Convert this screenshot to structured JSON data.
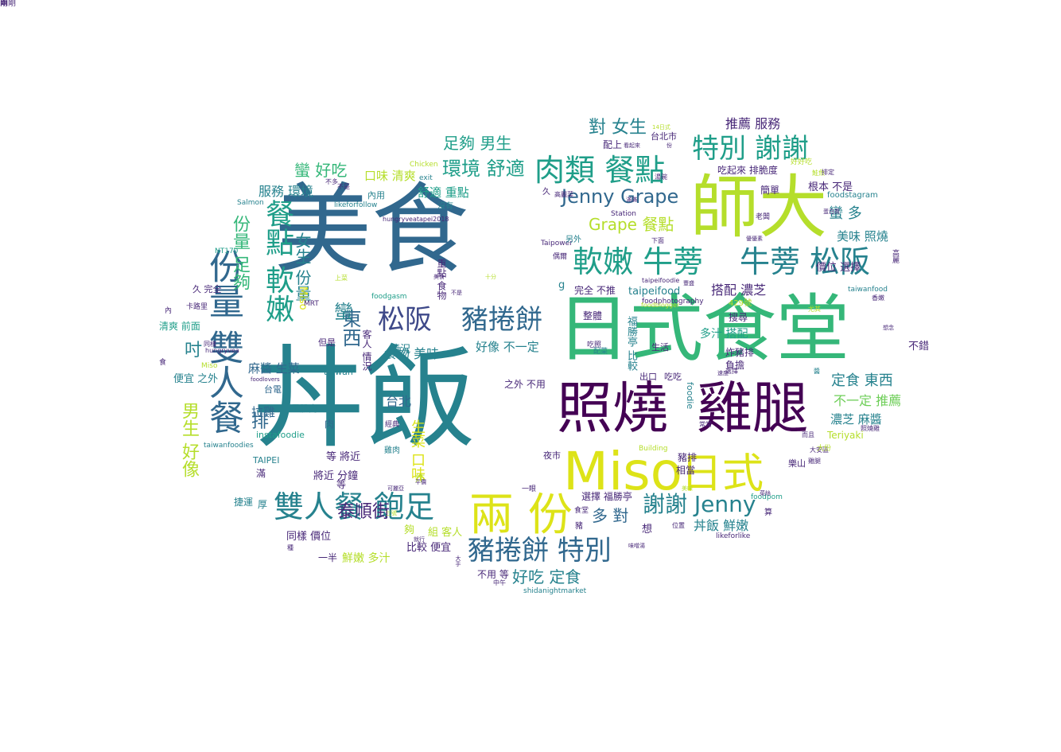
{
  "palette": {
    "dark_purple": "#440154",
    "purple": "#482878",
    "indigo": "#3e4989",
    "blue": "#31688e",
    "teal": "#26828e",
    "green_teal": "#1f9e89",
    "green": "#35b779",
    "lime": "#6ece58",
    "yellow_green": "#b5de2b",
    "yellow": "#dde318"
  },
  "words": [
    {
      "text": "美食",
      "c": "blue"
    },
    {
      "text": "丼飯",
      "c": "teal"
    },
    {
      "text": "日式食堂",
      "c": "green"
    },
    {
      "text": "師大",
      "c": "yellow_green"
    },
    {
      "text": "照燒",
      "c": "dark_purple"
    },
    {
      "text": "雞腿",
      "c": "dark_purple"
    },
    {
      "text": "Miso",
      "c": "yellow"
    },
    {
      "text": "日式",
      "c": "yellow"
    },
    {
      "text": "兩 份",
      "c": "yellow"
    },
    {
      "text": "雙人餐 飽足",
      "c": "teal"
    },
    {
      "text": "份量 雙人餐",
      "c": "blue"
    },
    {
      "text": "餐點 軟嫩",
      "c": "green_teal"
    },
    {
      "text": "軟嫩 牛蒡",
      "c": "green_teal"
    },
    {
      "text": "牛蒡 松阪",
      "c": "teal"
    },
    {
      "text": "肉類 餐點",
      "c": "green_teal"
    },
    {
      "text": "特別 謝謝",
      "c": "green_teal"
    },
    {
      "text": "松阪",
      "c": "indigo"
    },
    {
      "text": "豬捲餅",
      "c": "blue"
    },
    {
      "text": "豬捲餅 特別",
      "c": "blue"
    },
    {
      "text": "Jenny Grape",
      "c": "blue"
    },
    {
      "text": "Grape 餐點",
      "c": "yellow_green"
    },
    {
      "text": "謝謝 Jenny",
      "c": "teal"
    },
    {
      "text": "環境 舒適",
      "c": "green_teal"
    },
    {
      "text": "足夠 男生",
      "c": "green_teal"
    },
    {
      "text": "對 女生",
      "c": "teal"
    },
    {
      "text": "推薦 服務",
      "c": "purple"
    },
    {
      "text": "蠻 好吃",
      "c": "green"
    },
    {
      "text": "口味 清爽",
      "c": "yellow_green"
    },
    {
      "text": "服務 環境",
      "c": "teal"
    },
    {
      "text": "舒適 重點",
      "c": "green_teal"
    },
    {
      "text": "內用",
      "c": "teal"
    },
    {
      "text": "沒有",
      "c": "teal"
    },
    {
      "text": "蠻 多",
      "c": "teal"
    },
    {
      "text": "美味 照燒",
      "c": "teal"
    },
    {
      "text": "份量 足夠",
      "c": "green"
    },
    {
      "text": "女生 份量",
      "c": "teal"
    },
    {
      "text": "價位 選擇",
      "c": "purple"
    },
    {
      "text": "搭配 濃芝",
      "c": "purple"
    },
    {
      "text": "多汁 搭配",
      "c": "green_teal"
    },
    {
      "text": "定食 東西",
      "c": "teal"
    },
    {
      "text": "不一定 推薦",
      "c": "lime"
    },
    {
      "text": "濃芝 麻醬",
      "c": "teal"
    },
    {
      "text": "台北",
      "c": "blue"
    },
    {
      "text": "東西",
      "c": "blue"
    },
    {
      "text": "情況",
      "c": "teal"
    },
    {
      "text": "食物 美味",
      "c": "teal"
    },
    {
      "text": "好像 不一定",
      "c": "teal"
    },
    {
      "text": "麻醬 生菜",
      "c": "blue"
    },
    {
      "text": "排",
      "c": "blue"
    },
    {
      "text": "拉雞",
      "c": "blue"
    },
    {
      "text": "男生 好像",
      "c": "yellow_green"
    },
    {
      "text": "蠻",
      "c": "teal"
    },
    {
      "text": "吋",
      "c": "teal"
    },
    {
      "text": "台電",
      "c": "blue"
    },
    {
      "text": "里肌肉",
      "c": "teal"
    },
    {
      "text": "肉",
      "c": "blue"
    },
    {
      "text": "生菜 口味",
      "c": "yellow"
    },
    {
      "text": "多 對",
      "c": "blue"
    },
    {
      "text": "泰順街",
      "c": "purple"
    },
    {
      "text": "好吃 定食",
      "c": "teal"
    },
    {
      "text": "丼飯 鮮嫩",
      "c": "teal"
    },
    {
      "text": "組 客人",
      "c": "yellow_green"
    },
    {
      "text": "比較 便宜",
      "c": "purple"
    },
    {
      "text": "鮮嫩 多汁",
      "c": "yellow_green"
    },
    {
      "text": "同樣 價位",
      "c": "purple"
    },
    {
      "text": "將近 分鐘",
      "c": "purple"
    },
    {
      "text": "等 將近",
      "c": "purple"
    },
    {
      "text": "便宜 之外",
      "c": "teal"
    },
    {
      "text": "清爽 前面",
      "c": "green_teal"
    },
    {
      "text": "久 完全",
      "c": "purple"
    },
    {
      "text": "完全 不推",
      "c": "purple"
    },
    {
      "text": "taipeifood",
      "c": "teal"
    },
    {
      "text": "選擇 福勝亭",
      "c": "purple"
    },
    {
      "text": "炸豬排",
      "c": "purple"
    },
    {
      "text": "豬排",
      "c": "purple"
    },
    {
      "text": "相當",
      "c": "purple"
    },
    {
      "text": "不錯",
      "c": "purple"
    },
    {
      "text": "根本 不是",
      "c": "purple"
    },
    {
      "text": "簡單",
      "c": "purple"
    },
    {
      "text": "吃起來 排脆度",
      "c": "purple"
    },
    {
      "text": "配上",
      "c": "purple"
    },
    {
      "text": "台北市",
      "c": "purple"
    },
    {
      "text": "Miso",
      "c": "yellow"
    },
    {
      "text": "taiwan",
      "c": "teal"
    },
    {
      "text": "instafoodie",
      "c": "green_teal"
    },
    {
      "text": "Teriyaki",
      "c": "yellow_green"
    },
    {
      "text": "foodie",
      "c": "teal"
    },
    {
      "text": "夜市",
      "c": "purple"
    },
    {
      "text": "TAIPEI",
      "c": "teal"
    },
    {
      "text": "taiwanfoodies",
      "c": "teal"
    },
    {
      "text": "NT170",
      "c": "green_teal"
    },
    {
      "text": "Salmon",
      "c": "teal"
    },
    {
      "text": "foodgasm",
      "c": "green_teal"
    },
    {
      "text": "MRT",
      "c": "purple"
    },
    {
      "text": "Taipower",
      "c": "purple"
    },
    {
      "text": "Station",
      "c": "purple"
    },
    {
      "text": "foodstagram",
      "c": "teal"
    },
    {
      "text": "taiwanfood",
      "c": "teal"
    },
    {
      "text": "foodphotography",
      "c": "purple"
    },
    {
      "text": "foodpom",
      "c": "green_teal"
    },
    {
      "text": "likeforlike",
      "c": "purple"
    },
    {
      "text": "shidanightmarket",
      "c": "teal"
    },
    {
      "text": "Building",
      "c": "yellow_green"
    },
    {
      "text": "Chicken",
      "c": "yellow_green"
    },
    {
      "text": "exit",
      "c": "teal"
    },
    {
      "text": "likeforfollow",
      "c": "teal"
    },
    {
      "text": "hungryveatapei2018",
      "c": "purple"
    },
    {
      "text": "429號",
      "c": "yellow_green"
    },
    {
      "text": "搜尋",
      "c": "purple"
    },
    {
      "text": "負擔",
      "c": "purple"
    },
    {
      "text": "樂山",
      "c": "purple"
    },
    {
      "text": "算",
      "c": "purple"
    },
    {
      "text": "想",
      "c": "purple"
    },
    {
      "text": "豬",
      "c": "purple"
    },
    {
      "text": "食堂",
      "c": "purple"
    },
    {
      "text": "一眼",
      "c": "purple"
    },
    {
      "text": "厚",
      "c": "teal"
    },
    {
      "text": "滿",
      "c": "purple"
    },
    {
      "text": "捷運",
      "c": "teal"
    },
    {
      "text": "一半",
      "c": "purple"
    },
    {
      "text": "不用 等",
      "c": "purple"
    },
    {
      "text": "之外 不用",
      "c": "purple"
    },
    {
      "text": "吃吃",
      "c": "purple"
    },
    {
      "text": "出口",
      "c": "purple"
    },
    {
      "text": "生活",
      "c": "purple"
    },
    {
      "text": "整體",
      "c": "purple"
    },
    {
      "text": "但是",
      "c": "purple"
    },
    {
      "text": "客人 情況",
      "c": "purple"
    },
    {
      "text": "重點 食物",
      "c": "purple"
    },
    {
      "text": "雞肉",
      "c": "teal"
    },
    {
      "text": "經典",
      "c": "purple"
    },
    {
      "text": "炸",
      "c": "yellow_green"
    },
    {
      "text": "夠",
      "c": "yellow_green"
    },
    {
      "text": "等",
      "c": "purple"
    },
    {
      "text": "g",
      "c": "teal"
    },
    {
      "text": "Miso",
      "c": "yellow_green"
    },
    {
      "text": "福勝亭 比較",
      "c": "teal"
    },
    {
      "text": "配菜",
      "c": "teal"
    },
    {
      "text": "吃照",
      "c": "purple"
    },
    {
      "text": "另外",
      "c": "teal"
    },
    {
      "text": "偶爾",
      "c": "purple"
    },
    {
      "text": "久",
      "c": "purple"
    },
    {
      "text": "高麗菜",
      "c": "purple"
    },
    {
      "text": "上菜",
      "c": "yellow_green"
    },
    {
      "text": "不是",
      "c": "purple"
    },
    {
      "text": "不多",
      "c": "purple"
    },
    {
      "text": "卡路里",
      "c": "purple"
    },
    {
      "text": "內",
      "c": "purple"
    },
    {
      "text": "食",
      "c": "purple"
    },
    {
      "text": "種",
      "c": "purple"
    },
    {
      "text": "同樣",
      "c": "purple"
    },
    {
      "text": "中午",
      "c": "purple"
    },
    {
      "text": "可麗亞",
      "c": "purple"
    },
    {
      "text": "平價",
      "c": "purple"
    },
    {
      "text": "三號",
      "c": "yellow_green"
    },
    {
      "text": "菜絲",
      "c": "purple"
    },
    {
      "text": "大手",
      "c": "purple"
    },
    {
      "text": "味噌湯",
      "c": "purple"
    },
    {
      "text": "位置",
      "c": "purple"
    },
    {
      "text": "高麗",
      "c": "purple"
    },
    {
      "text": "大安區",
      "c": "purple"
    },
    {
      "text": "雞腿",
      "c": "purple"
    },
    {
      "text": "而且",
      "c": "purple"
    },
    {
      "text": "大份",
      "c": "yellow_green"
    },
    {
      "text": "醬",
      "c": "teal"
    },
    {
      "text": "照燒雞",
      "c": "purple"
    },
    {
      "text": "想念",
      "c": "purple"
    },
    {
      "text": "香嫩",
      "c": "purple"
    },
    {
      "text": "尤其",
      "c": "yellow_green"
    },
    {
      "text": "蛋白質",
      "c": "purple"
    },
    {
      "text": "優優素",
      "c": "purple"
    },
    {
      "text": "老闆",
      "c": "purple"
    },
    {
      "text": "好好吃",
      "c": "yellow_green"
    },
    {
      "text": "鮭魚",
      "c": "yellow_green"
    },
    {
      "text": "排定",
      "c": "purple"
    },
    {
      "text": "湯碗",
      "c": "purple"
    },
    {
      "text": "看起來",
      "c": "purple"
    },
    {
      "text": "選擇",
      "c": "purple"
    },
    {
      "text": "常常",
      "c": "purple"
    },
    {
      "text": "速度",
      "c": "purple"
    },
    {
      "text": "hungryvea",
      "c": "purple"
    },
    {
      "text": "foodlovers",
      "c": "purple"
    },
    {
      "text": "foodblogger",
      "c": "yellow_green"
    },
    {
      "text": "taipeifoodie",
      "c": "purple"
    },
    {
      "text": "下面",
      "c": "purple"
    },
    {
      "text": "豐盛",
      "c": "purple"
    },
    {
      "text": "滿滿",
      "c": "purple"
    },
    {
      "text": "美味",
      "c": "yellow_green"
    },
    {
      "text": "就行",
      "c": "purple"
    },
    {
      "text": "14日式",
      "c": "yellow_green"
    },
    {
      "text": "十分",
      "c": "yellow_green"
    },
    {
      "text": "不是",
      "c": "purple"
    },
    {
      "text": "美食",
      "c": "purple"
    },
    {
      "text": "份",
      "c": "purple"
    },
    {
      "text": "雨",
      "c": "purple"
    },
    {
      "text": "兩",
      "c": "purple"
    },
    {
      "text": "剛剛",
      "c": "purple"
    }
  ]
}
